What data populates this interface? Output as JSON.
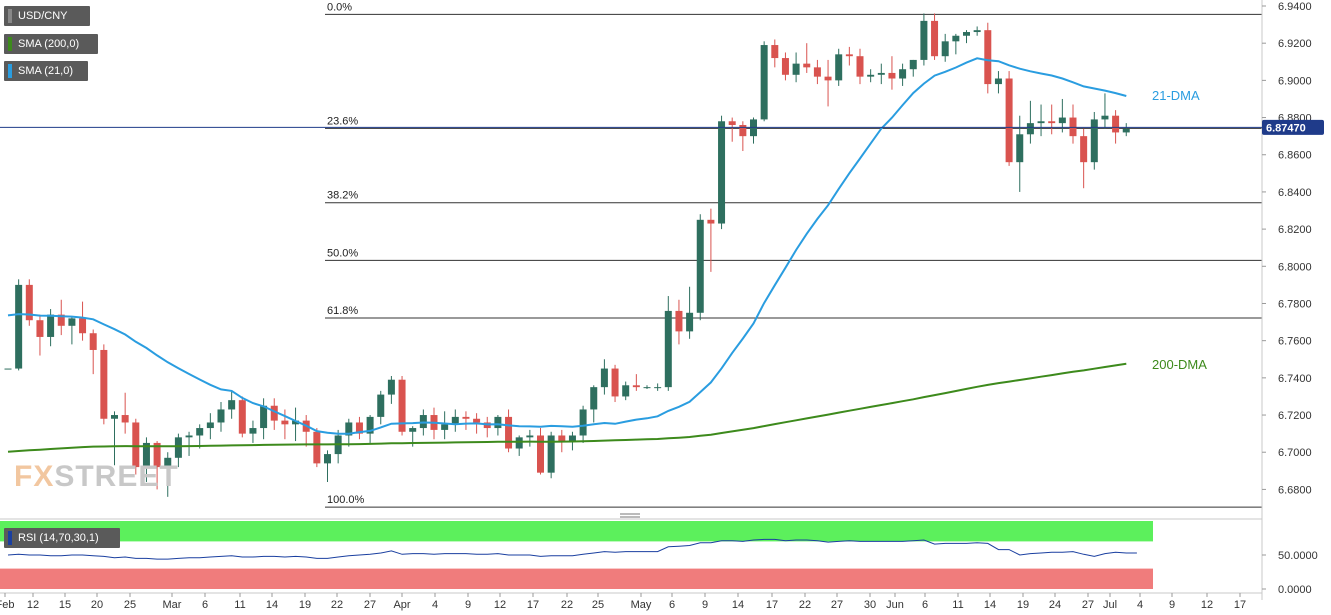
{
  "legend": {
    "symbol": "USD/CNY",
    "sma200": "SMA (200,0)",
    "sma21": "SMA (21,0)",
    "rsi": "RSI (14,70,30,1)"
  },
  "watermark": {
    "fx": "FX",
    "street": "STREET"
  },
  "colors": {
    "up": "#2e6f5f",
    "down": "#d9534f",
    "sma200": "#3d8a1c",
    "sma21": "#2a9de0",
    "price_tag": "#1f3b8a",
    "rsi_overbought": "#5cf05c",
    "rsi_oversold": "#f07c7c"
  },
  "chart_data": [
    {
      "type": "candlestick",
      "symbol": "USD/CNY",
      "current_price": 6.8747,
      "current_price_label": "6.87470",
      "ylim": [
        6.67,
        6.94
      ],
      "y_ticks": [
        "6.9400",
        "6.9200",
        "6.9000",
        "6.8800",
        "6.8600",
        "6.8400",
        "6.8200",
        "6.8000",
        "6.7800",
        "6.7600",
        "6.7400",
        "6.7200",
        "6.7000",
        "6.6800"
      ],
      "x_ticks": [
        "Feb",
        "12",
        "15",
        "20",
        "25",
        "Mar",
        "6",
        "11",
        "14",
        "19",
        "22",
        "27",
        "Apr",
        "4",
        "9",
        "12",
        "17",
        "22",
        "25",
        "May",
        "6",
        "9",
        "14",
        "17",
        "22",
        "27",
        "30",
        "Jun",
        "6",
        "11",
        "14",
        "19",
        "24",
        "27",
        "Jul",
        "4",
        "9",
        "12",
        "17"
      ],
      "fibonacci": [
        {
          "label": "0.0%",
          "value": 6.9355
        },
        {
          "label": "23.6%",
          "value": 6.8742
        },
        {
          "label": "38.2%",
          "value": 6.8342
        },
        {
          "label": "50.0%",
          "value": 6.8032
        },
        {
          "label": "61.8%",
          "value": 6.7722
        },
        {
          "label": "100.0%",
          "value": 6.6705
        }
      ],
      "ma_labels": {
        "sma21": "21-DMA",
        "sma200": "200-DMA"
      },
      "candles": [
        [
          6.745,
          6.745,
          6.745,
          6.745
        ],
        [
          6.745,
          6.793,
          6.744,
          6.79
        ],
        [
          6.79,
          6.793,
          6.768,
          6.771
        ],
        [
          6.771,
          6.774,
          6.752,
          6.762
        ],
        [
          6.762,
          6.777,
          6.757,
          6.774
        ],
        [
          6.774,
          6.782,
          6.763,
          6.768
        ],
        [
          6.768,
          6.773,
          6.758,
          6.772
        ],
        [
          6.772,
          6.781,
          6.76,
          6.764
        ],
        [
          6.764,
          6.766,
          6.742,
          6.755
        ],
        [
          6.755,
          6.758,
          6.715,
          6.718
        ],
        [
          6.718,
          6.722,
          6.693,
          6.72
        ],
        [
          6.72,
          6.732,
          6.71,
          6.716
        ],
        [
          6.716,
          6.718,
          6.688,
          6.692
        ],
        [
          6.692,
          6.708,
          6.684,
          6.705
        ],
        [
          6.705,
          6.706,
          6.68,
          6.692
        ],
        [
          6.692,
          6.7,
          6.676,
          6.697
        ],
        [
          6.697,
          6.71,
          6.692,
          6.708
        ],
        [
          6.708,
          6.711,
          6.698,
          6.709
        ],
        [
          6.709,
          6.715,
          6.702,
          6.713
        ],
        [
          6.713,
          6.721,
          6.707,
          6.716
        ],
        [
          6.716,
          6.727,
          6.711,
          6.723
        ],
        [
          6.723,
          6.733,
          6.718,
          6.728
        ],
        [
          6.728,
          6.73,
          6.708,
          6.71
        ],
        [
          6.71,
          6.717,
          6.705,
          6.713
        ],
        [
          6.713,
          6.729,
          6.707,
          6.725
        ],
        [
          6.725,
          6.729,
          6.712,
          6.717
        ],
        [
          6.717,
          6.723,
          6.707,
          6.715
        ],
        [
          6.715,
          6.724,
          6.706,
          6.717
        ],
        [
          6.717,
          6.72,
          6.703,
          6.711
        ],
        [
          6.711,
          6.713,
          6.692,
          6.694
        ],
        [
          6.694,
          6.701,
          6.684,
          6.699
        ],
        [
          6.699,
          6.712,
          6.694,
          6.709
        ],
        [
          6.709,
          6.718,
          6.703,
          6.716
        ],
        [
          6.716,
          6.719,
          6.707,
          6.71
        ],
        [
          6.71,
          6.72,
          6.705,
          6.719
        ],
        [
          6.719,
          6.733,
          6.715,
          6.731
        ],
        [
          6.731,
          6.741,
          6.726,
          6.739
        ],
        [
          6.739,
          6.741,
          6.709,
          6.711
        ],
        [
          6.711,
          6.714,
          6.703,
          6.713
        ],
        [
          6.713,
          6.723,
          6.709,
          6.72
        ],
        [
          6.72,
          6.724,
          6.707,
          6.712
        ],
        [
          6.712,
          6.722,
          6.707,
          6.715
        ],
        [
          6.715,
          6.723,
          6.711,
          6.719
        ],
        [
          6.719,
          6.722,
          6.712,
          6.718
        ],
        [
          6.718,
          6.721,
          6.71,
          6.716
        ],
        [
          6.716,
          6.719,
          6.708,
          6.713
        ],
        [
          6.713,
          6.72,
          6.709,
          6.719
        ],
        [
          6.719,
          6.723,
          6.7,
          6.702
        ],
        [
          6.702,
          6.709,
          6.698,
          6.708
        ],
        [
          6.708,
          6.712,
          6.703,
          6.709
        ],
        [
          6.709,
          6.713,
          6.688,
          6.689
        ],
        [
          6.689,
          6.711,
          6.686,
          6.709
        ],
        [
          6.709,
          6.712,
          6.7,
          6.706
        ],
        [
          6.706,
          6.711,
          6.701,
          6.709
        ],
        [
          6.709,
          6.725,
          6.705,
          6.723
        ],
        [
          6.723,
          6.736,
          6.716,
          6.735
        ],
        [
          6.735,
          6.75,
          6.731,
          6.745
        ],
        [
          6.745,
          6.747,
          6.727,
          6.73
        ],
        [
          6.73,
          6.738,
          6.728,
          6.736
        ],
        [
          6.736,
          6.742,
          6.733,
          6.735
        ],
        [
          6.735,
          6.736,
          6.734,
          6.735
        ],
        [
          6.735,
          6.737,
          6.733,
          6.735
        ],
        [
          6.735,
          6.784,
          6.733,
          6.776
        ],
        [
          6.776,
          6.782,
          6.758,
          6.765
        ],
        [
          6.765,
          6.789,
          6.761,
          6.775
        ],
        [
          6.775,
          6.828,
          6.771,
          6.825
        ],
        [
          6.825,
          6.831,
          6.797,
          6.823
        ],
        [
          6.823,
          6.881,
          6.82,
          6.878
        ],
        [
          6.878,
          6.88,
          6.867,
          6.876
        ],
        [
          6.876,
          6.878,
          6.862,
          6.87
        ],
        [
          6.87,
          6.88,
          6.866,
          6.879
        ],
        [
          6.879,
          6.921,
          6.878,
          6.919
        ],
        [
          6.919,
          6.922,
          6.907,
          6.912
        ],
        [
          6.912,
          6.915,
          6.9,
          6.903
        ],
        [
          6.903,
          6.915,
          6.899,
          6.909
        ],
        [
          6.909,
          6.92,
          6.904,
          6.907
        ],
        [
          6.907,
          6.911,
          6.898,
          6.902
        ],
        [
          6.902,
          6.911,
          6.886,
          6.9
        ],
        [
          6.9,
          6.917,
          6.897,
          6.914
        ],
        [
          6.914,
          6.918,
          6.908,
          6.913
        ],
        [
          6.913,
          6.917,
          6.898,
          6.902
        ],
        [
          6.902,
          6.906,
          6.899,
          6.903
        ],
        [
          6.903,
          6.909,
          6.898,
          6.904
        ],
        [
          6.904,
          6.913,
          6.895,
          6.901
        ],
        [
          6.901,
          6.909,
          6.897,
          6.906
        ],
        [
          6.906,
          6.911,
          6.902,
          6.911
        ],
        [
          6.911,
          6.936,
          6.908,
          6.932
        ],
        [
          6.932,
          6.936,
          6.911,
          6.913
        ],
        [
          6.913,
          6.925,
          6.91,
          6.921
        ],
        [
          6.921,
          6.925,
          6.914,
          6.924
        ],
        [
          6.924,
          6.927,
          6.92,
          6.926
        ],
        [
          6.926,
          6.929,
          6.924,
          6.927
        ],
        [
          6.927,
          6.931,
          6.893,
          6.898
        ],
        [
          6.898,
          6.905,
          6.893,
          6.901
        ],
        [
          6.901,
          6.905,
          6.854,
          6.856
        ],
        [
          6.856,
          6.881,
          6.84,
          6.871
        ],
        [
          6.871,
          6.889,
          6.866,
          6.877
        ],
        [
          6.877,
          6.887,
          6.87,
          6.878
        ],
        [
          6.878,
          6.887,
          6.871,
          6.877
        ],
        [
          6.877,
          6.89,
          6.872,
          6.88
        ],
        [
          6.88,
          6.887,
          6.866,
          6.87
        ],
        [
          6.87,
          6.874,
          6.842,
          6.856
        ],
        [
          6.856,
          6.883,
          6.852,
          6.879
        ],
        [
          6.879,
          6.893,
          6.874,
          6.881
        ],
        [
          6.881,
          6.884,
          6.866,
          6.872
        ],
        [
          6.872,
          6.877,
          6.87,
          6.874
        ]
      ]
    },
    {
      "type": "line",
      "title": "RSI (14,70,30,1)",
      "ylim": [
        0,
        100
      ],
      "y_ticks": [
        "50.0000",
        "0.0000"
      ],
      "bands": {
        "overbought": 70,
        "oversold": 30
      },
      "values": [
        50,
        51,
        50,
        50,
        49,
        49,
        50,
        50,
        49,
        48,
        46,
        47,
        45,
        45,
        44,
        44,
        45,
        46,
        46,
        47,
        48,
        49,
        47,
        47,
        48,
        48,
        47,
        48,
        47,
        45,
        45,
        47,
        49,
        50,
        51,
        53,
        56,
        51,
        52,
        52,
        51,
        52,
        52,
        52,
        51,
        51,
        52,
        50,
        50,
        50,
        48,
        49,
        49,
        49,
        51,
        53,
        55,
        54,
        55,
        55,
        55,
        55,
        62,
        63,
        64,
        68,
        68,
        71,
        71,
        70,
        72,
        73,
        73,
        71,
        72,
        72,
        71,
        69,
        70,
        71,
        70,
        70,
        70,
        70,
        70,
        71,
        72,
        66,
        67,
        67,
        67,
        68,
        67,
        58,
        58,
        50,
        52,
        53,
        54,
        54,
        55,
        51,
        48,
        52,
        54,
        53,
        53
      ]
    }
  ]
}
